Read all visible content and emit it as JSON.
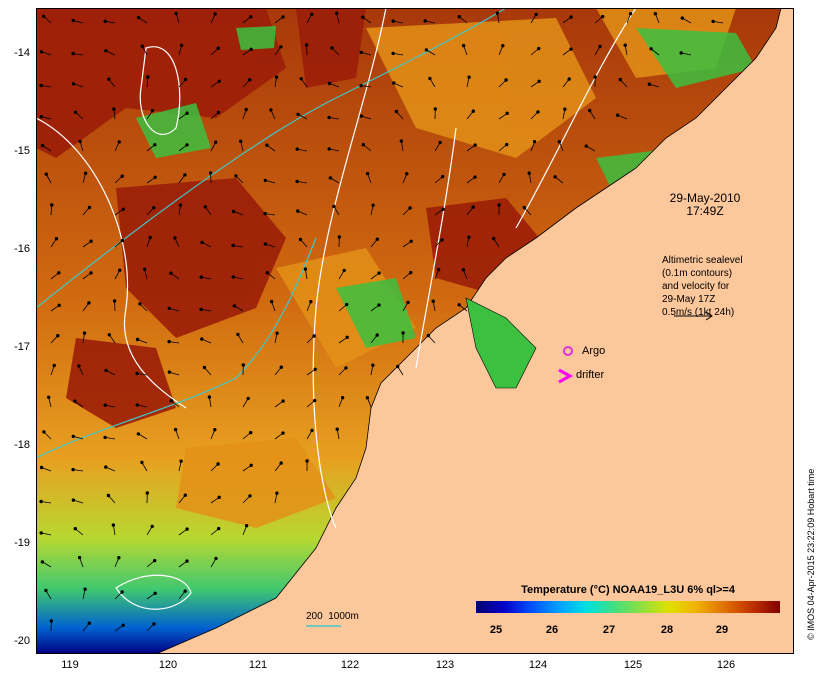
{
  "map": {
    "date_line1": "29-May-2010",
    "date_line2": "17:49Z",
    "altimetry_lines": [
      "Altimetric sealevel",
      "(0.1m contours)",
      "and velocity for",
      "29-May 17Z",
      "0.5m/s (1kt 24h)"
    ],
    "argo_label": "Argo",
    "drifter_label": "drifter",
    "depth_legend": "200  1000m",
    "credit": "© IMOS 04-Apr-2015 23:22:09 Hobart time",
    "lat_labels": [
      "-14",
      "-15",
      "-16",
      "-17",
      "-18",
      "-19",
      "-20"
    ],
    "lon_labels": [
      "119",
      "120",
      "121",
      "122",
      "123",
      "124",
      "125",
      "126"
    ],
    "colorbar": {
      "title": "Temperature (°C) NOAA19_L3U 6% ql>=4",
      "ticks": [
        "25",
        "26",
        "27",
        "28",
        "29"
      ],
      "colors": [
        "#00006e",
        "#0050ff",
        "#00e0e0",
        "#90e040",
        "#e0e000",
        "#e07000",
        "#800000"
      ]
    },
    "colors": {
      "land": "#fcc79b",
      "warm_water": "#9c1e08",
      "orange_water": "#e08010",
      "contour": "#ffffff",
      "isobath": "#40c8c8",
      "argo": "#e030e0",
      "drifter": "#ff00ff"
    }
  }
}
